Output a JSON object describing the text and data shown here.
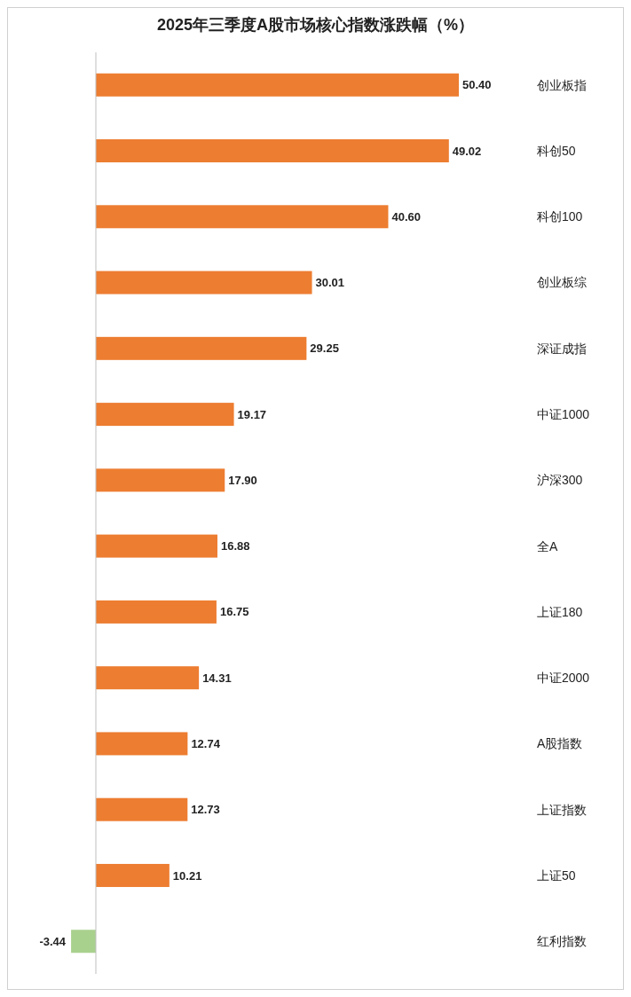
{
  "chart_data": {
    "type": "bar",
    "orientation": "horizontal",
    "title": "2025年三季度A股市场核心指数涨跌幅（%）",
    "categories": [
      "创业板指",
      "科创50",
      "科创100",
      "创业板综",
      "深证成指",
      "中证1000",
      "沪深300",
      "全A",
      "上证180",
      "中证2000",
      "A股指数",
      "上证指数",
      "上证50",
      "红利指数"
    ],
    "values": [
      50.4,
      49.02,
      40.6,
      30.01,
      29.25,
      19.17,
      17.9,
      16.88,
      16.75,
      14.31,
      12.74,
      12.73,
      10.21,
      -3.44
    ],
    "colors": [
      "#ed7d31",
      "#ed7d31",
      "#ed7d31",
      "#ed7d31",
      "#ed7d31",
      "#ed7d31",
      "#ed7d31",
      "#ed7d31",
      "#ed7d31",
      "#ed7d31",
      "#ed7d31",
      "#ed7d31",
      "#ed7d31",
      "#a9d18e"
    ],
    "value_labels": [
      "50.40",
      "49.02",
      "40.60",
      "30.01",
      "29.25",
      "19.17",
      "17.90",
      "16.88",
      "16.75",
      "14.31",
      "12.74",
      "12.73",
      "10.21",
      "-3.44"
    ]
  }
}
